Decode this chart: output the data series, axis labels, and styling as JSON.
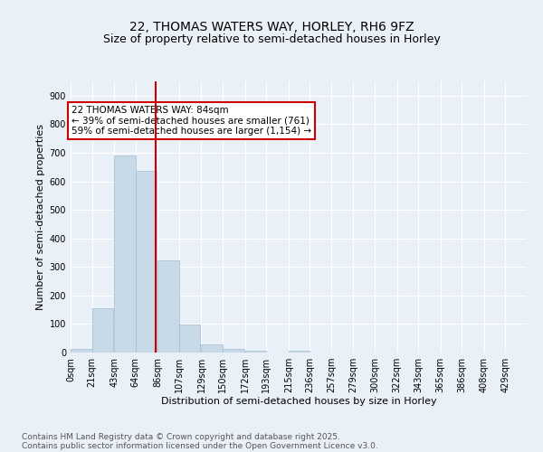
{
  "title": "22, THOMAS WATERS WAY, HORLEY, RH6 9FZ",
  "subtitle": "Size of property relative to semi-detached houses in Horley",
  "xlabel": "Distribution of semi-detached houses by size in Horley",
  "ylabel": "Number of semi-detached properties",
  "bin_labels": [
    "0sqm",
    "21sqm",
    "43sqm",
    "64sqm",
    "86sqm",
    "107sqm",
    "129sqm",
    "150sqm",
    "172sqm",
    "193sqm",
    "215sqm",
    "236sqm",
    "257sqm",
    "279sqm",
    "300sqm",
    "322sqm",
    "343sqm",
    "365sqm",
    "386sqm",
    "408sqm",
    "429sqm"
  ],
  "bin_edges": [
    0,
    21,
    43,
    64,
    86,
    107,
    129,
    150,
    172,
    193,
    215,
    236,
    257,
    279,
    300,
    322,
    343,
    365,
    386,
    408,
    429
  ],
  "bar_heights": [
    13,
    155,
    690,
    638,
    324,
    99,
    30,
    12,
    6,
    0,
    5,
    0,
    0,
    0,
    0,
    0,
    0,
    0,
    0,
    0
  ],
  "bar_color": "#c8d9e8",
  "bar_edgecolor": "#a0bcd0",
  "vline_x": 84,
  "vline_color": "#cc0000",
  "annotation_text": "22 THOMAS WATERS WAY: 84sqm\n← 39% of semi-detached houses are smaller (761)\n59% of semi-detached houses are larger (1,154) →",
  "annotation_box_edgecolor": "#cc0000",
  "annotation_box_facecolor": "#ffffff",
  "ylim": [
    0,
    950
  ],
  "yticks": [
    0,
    100,
    200,
    300,
    400,
    500,
    600,
    700,
    800,
    900
  ],
  "footer_line1": "Contains HM Land Registry data © Crown copyright and database right 2025.",
  "footer_line2": "Contains public sector information licensed under the Open Government Licence v3.0.",
  "bg_color": "#eaf0f8",
  "plot_bg_color": "#eaf0f8",
  "grid_color": "#ffffff",
  "title_fontsize": 10,
  "subtitle_fontsize": 9,
  "axis_label_fontsize": 8,
  "tick_fontsize": 7,
  "annotation_fontsize": 7.5,
  "footer_fontsize": 6.5
}
